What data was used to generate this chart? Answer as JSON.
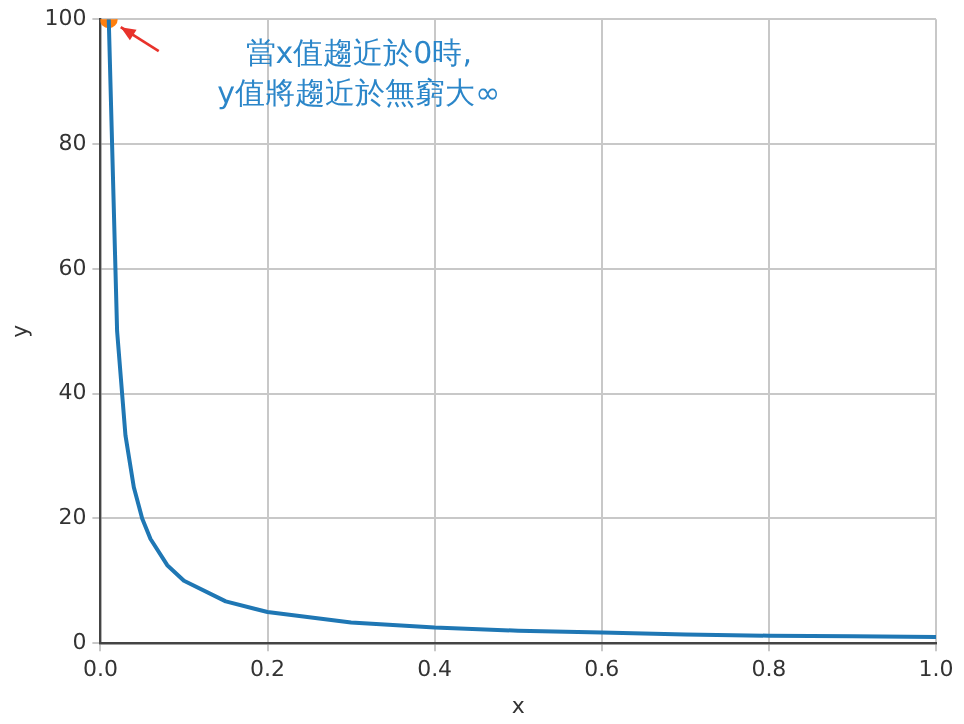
{
  "chart_data": {
    "type": "line",
    "xlabel": "x",
    "ylabel": "y",
    "series": [
      {
        "color": "#1f77b4",
        "x": [
          0.01,
          0.02,
          0.03,
          0.04,
          0.05,
          0.06,
          0.08,
          0.1,
          0.15,
          0.2,
          0.3,
          0.4,
          0.5,
          0.6,
          0.7,
          0.8,
          0.9,
          1.0
        ],
        "values": [
          100,
          50,
          33.3,
          25,
          20,
          16.7,
          12.5,
          10,
          6.7,
          5,
          3.3,
          2.5,
          2,
          1.7,
          1.4,
          1.2,
          1.1,
          1
        ]
      },
      {
        "type": "scatter",
        "marker": "circle",
        "color": "#ff7f0e",
        "x": [
          0.01
        ],
        "values": [
          100
        ]
      }
    ],
    "xlim": [
      0,
      1
    ],
    "xticks": [
      {
        "value": 0,
        "label": "0.0"
      },
      {
        "value": 0.2,
        "label": "0.2"
      },
      {
        "value": 0.4,
        "label": "0.4"
      },
      {
        "value": 0.6,
        "label": "0.6"
      },
      {
        "value": 0.8,
        "label": "0.8"
      },
      {
        "value": 1,
        "label": "1.0"
      }
    ],
    "ylim": [
      0,
      100
    ],
    "yticks": [
      0,
      20,
      40,
      60,
      80,
      100
    ],
    "grid": true,
    "annotations": [
      "當x值趨近於0時,\ny值將趨近於無窮大∞"
    ]
  }
}
